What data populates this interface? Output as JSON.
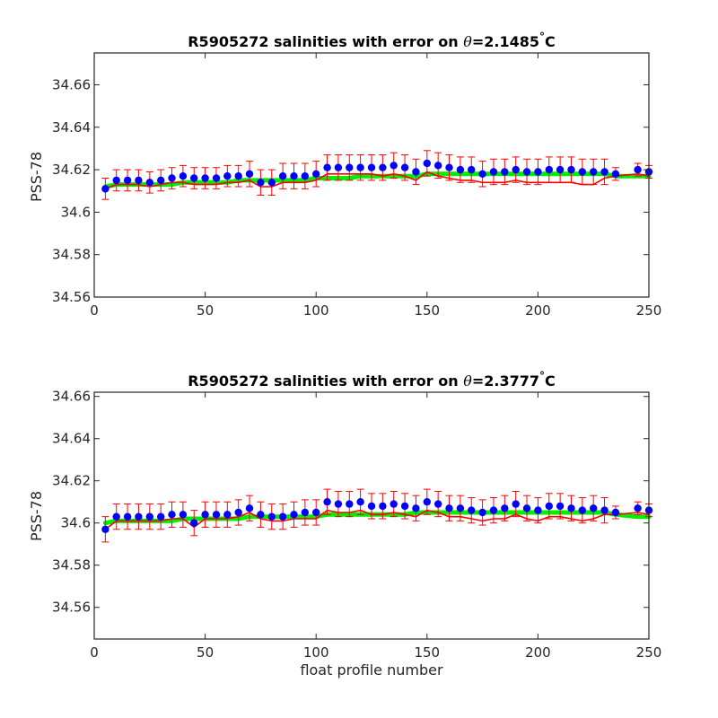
{
  "chart_data": [
    {
      "type": "scatter",
      "title": {
        "prefix": "R5905272 salinities with error on ",
        "theta_symbol": "θ",
        "value": "=2.1485",
        "degree": "°",
        "unit": "C"
      },
      "xlabel": "",
      "ylabel": "PSS-78",
      "xlim": [
        0,
        250
      ],
      "ylim": [
        34.56,
        34.675
      ],
      "xticks": [
        0,
        50,
        100,
        150,
        200,
        250
      ],
      "xtick_labels": [
        "0",
        "50",
        "100",
        "150",
        "200",
        "250"
      ],
      "yticks": [
        34.56,
        34.58,
        34.6,
        34.62,
        34.64,
        34.66
      ],
      "ytick_labels": [
        "34.56",
        "34.58",
        "34.6",
        "34.62",
        "34.64",
        "34.66"
      ],
      "grid": false,
      "colors": {
        "points": "#0000ff",
        "error_bars": "#ff0000",
        "calibrated_line": "#00ee00",
        "red_line": "#ff0000"
      },
      "x": [
        5,
        10,
        15,
        20,
        25,
        30,
        35,
        40,
        45,
        50,
        55,
        60,
        65,
        70,
        75,
        80,
        85,
        90,
        95,
        100,
        105,
        110,
        115,
        120,
        125,
        130,
        135,
        140,
        145,
        150,
        155,
        160,
        165,
        170,
        175,
        180,
        185,
        190,
        195,
        200,
        205,
        210,
        215,
        220,
        225,
        230,
        235,
        245,
        250
      ],
      "blue_values": [
        34.611,
        34.615,
        34.615,
        34.615,
        34.614,
        34.615,
        34.616,
        34.617,
        34.616,
        34.616,
        34.616,
        34.617,
        34.617,
        34.618,
        34.614,
        34.614,
        34.617,
        34.617,
        34.617,
        34.618,
        34.621,
        34.621,
        34.621,
        34.621,
        34.621,
        34.621,
        34.622,
        34.621,
        34.619,
        34.623,
        34.622,
        34.621,
        34.62,
        34.62,
        34.618,
        34.619,
        34.619,
        34.62,
        34.619,
        34.619,
        34.62,
        34.62,
        34.62,
        34.619,
        34.619,
        34.619,
        34.618,
        34.62,
        34.619
      ],
      "error_half_widths": [
        0.005,
        0.005,
        0.005,
        0.005,
        0.005,
        0.005,
        0.005,
        0.005,
        0.005,
        0.005,
        0.005,
        0.005,
        0.005,
        0.006,
        0.006,
        0.006,
        0.006,
        0.006,
        0.006,
        0.006,
        0.006,
        0.006,
        0.006,
        0.006,
        0.006,
        0.006,
        0.006,
        0.006,
        0.006,
        0.006,
        0.006,
        0.006,
        0.006,
        0.006,
        0.006,
        0.006,
        0.006,
        0.006,
        0.006,
        0.006,
        0.006,
        0.006,
        0.006,
        0.006,
        0.006,
        0.006,
        0.003,
        0.003,
        0.003
      ],
      "red_values": [
        34.611,
        34.613,
        34.613,
        34.613,
        34.612,
        34.613,
        34.614,
        34.614,
        34.613,
        34.613,
        34.613,
        34.614,
        34.614,
        34.615,
        34.612,
        34.612,
        34.614,
        34.614,
        34.614,
        34.615,
        34.618,
        34.618,
        34.618,
        34.618,
        34.618,
        34.617,
        34.618,
        34.617,
        34.615,
        34.619,
        34.617,
        34.616,
        34.615,
        34.615,
        34.614,
        34.614,
        34.614,
        34.615,
        34.614,
        34.614,
        34.614,
        34.614,
        34.614,
        34.613,
        34.613,
        34.616,
        34.617,
        34.618,
        34.617
      ],
      "green_values": [
        34.612,
        34.613,
        34.613,
        34.613,
        34.613,
        34.613,
        34.613,
        34.614,
        34.614,
        34.614,
        34.614,
        34.614,
        34.615,
        34.615,
        34.615,
        34.615,
        34.615,
        34.615,
        34.615,
        34.616,
        34.616,
        34.616,
        34.616,
        34.617,
        34.617,
        34.617,
        34.617,
        34.617,
        34.617,
        34.618,
        34.618,
        34.618,
        34.618,
        34.618,
        34.618,
        34.618,
        34.618,
        34.618,
        34.618,
        34.618,
        34.618,
        34.618,
        34.618,
        34.618,
        34.618,
        34.618,
        34.617,
        34.617,
        34.617
      ]
    },
    {
      "type": "scatter",
      "title": {
        "prefix": "R5905272 salinities with error on ",
        "theta_symbol": "θ",
        "value": "=2.3777",
        "degree": "°",
        "unit": "C"
      },
      "xlabel": "float profile number",
      "ylabel": "PSS-78",
      "xlim": [
        0,
        250
      ],
      "ylim": [
        34.545,
        34.662
      ],
      "xticks": [
        0,
        50,
        100,
        150,
        200,
        250
      ],
      "xtick_labels": [
        "0",
        "50",
        "100",
        "150",
        "200",
        "250"
      ],
      "yticks": [
        34.56,
        34.58,
        34.6,
        34.62,
        34.64,
        34.66
      ],
      "ytick_labels": [
        "34.56",
        "34.58",
        "34.6",
        "34.62",
        "34.64",
        "34.66"
      ],
      "grid": false,
      "colors": {
        "points": "#0000ff",
        "error_bars": "#ff0000",
        "calibrated_line": "#00ee00",
        "red_line": "#ff0000"
      },
      "x": [
        5,
        10,
        15,
        20,
        25,
        30,
        35,
        40,
        45,
        50,
        55,
        60,
        65,
        70,
        75,
        80,
        85,
        90,
        95,
        100,
        105,
        110,
        115,
        120,
        125,
        130,
        135,
        140,
        145,
        150,
        155,
        160,
        165,
        170,
        175,
        180,
        185,
        190,
        195,
        200,
        205,
        210,
        215,
        220,
        225,
        230,
        235,
        245,
        250
      ],
      "blue_values": [
        34.597,
        34.603,
        34.603,
        34.603,
        34.603,
        34.603,
        34.604,
        34.604,
        34.6,
        34.604,
        34.604,
        34.604,
        34.605,
        34.607,
        34.604,
        34.603,
        34.603,
        34.604,
        34.605,
        34.605,
        34.61,
        34.609,
        34.609,
        34.61,
        34.608,
        34.608,
        34.609,
        34.608,
        34.607,
        34.61,
        34.609,
        34.607,
        34.607,
        34.606,
        34.605,
        34.606,
        34.607,
        34.609,
        34.607,
        34.606,
        34.608,
        34.608,
        34.607,
        34.606,
        34.607,
        34.606,
        34.605,
        34.607,
        34.606
      ],
      "error_half_widths": [
        0.006,
        0.006,
        0.006,
        0.006,
        0.006,
        0.006,
        0.006,
        0.006,
        0.006,
        0.006,
        0.006,
        0.006,
        0.006,
        0.006,
        0.006,
        0.006,
        0.006,
        0.006,
        0.006,
        0.006,
        0.006,
        0.006,
        0.006,
        0.006,
        0.006,
        0.006,
        0.006,
        0.006,
        0.006,
        0.006,
        0.006,
        0.006,
        0.006,
        0.006,
        0.006,
        0.006,
        0.006,
        0.006,
        0.006,
        0.006,
        0.006,
        0.006,
        0.006,
        0.006,
        0.006,
        0.006,
        0.003,
        0.003,
        0.003
      ],
      "red_values": [
        34.597,
        34.601,
        34.601,
        34.601,
        34.601,
        34.601,
        34.602,
        34.602,
        34.598,
        34.602,
        34.602,
        34.602,
        34.603,
        34.605,
        34.602,
        34.601,
        34.601,
        34.602,
        34.602,
        34.602,
        34.606,
        34.605,
        34.605,
        34.606,
        34.604,
        34.604,
        34.605,
        34.604,
        34.603,
        34.606,
        34.605,
        34.603,
        34.603,
        34.602,
        34.601,
        34.602,
        34.602,
        34.604,
        34.602,
        34.601,
        34.603,
        34.603,
        34.602,
        34.601,
        34.602,
        34.604,
        34.604,
        34.605,
        34.604
      ],
      "green_values": [
        34.6,
        34.601,
        34.601,
        34.601,
        34.601,
        34.601,
        34.601,
        34.602,
        34.602,
        34.602,
        34.602,
        34.602,
        34.602,
        34.603,
        34.603,
        34.603,
        34.603,
        34.603,
        34.603,
        34.603,
        34.604,
        34.604,
        34.604,
        34.604,
        34.604,
        34.604,
        34.604,
        34.604,
        34.605,
        34.605,
        34.605,
        34.605,
        34.605,
        34.605,
        34.605,
        34.605,
        34.605,
        34.605,
        34.605,
        34.605,
        34.605,
        34.605,
        34.605,
        34.605,
        34.605,
        34.605,
        34.604,
        34.603,
        34.603
      ]
    }
  ]
}
